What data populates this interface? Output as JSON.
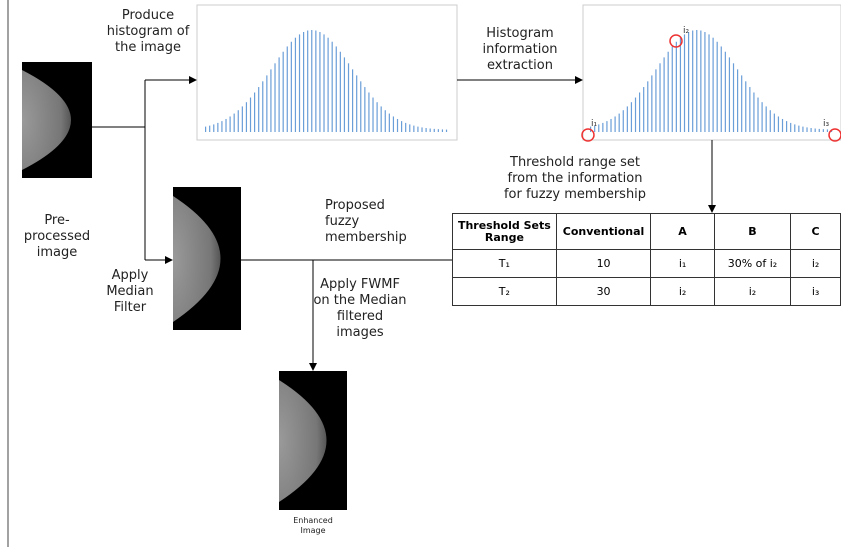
{
  "labels": {
    "produce_histogram": "Produce\nhistogram of\nthe image",
    "histogram_extraction": "Histogram\ninformation\nextraction",
    "threshold_range": "Threshold range set\nfrom the information\nfor fuzzy membership",
    "preprocessed": "Pre-\nprocessed\nimage",
    "median_filter": "Apply\nMedian\nFilter",
    "fuzzy_membership": "Proposed\nfuzzy\nmembership",
    "apply_fwmf": "Apply FWMF\non the Median\nfiltered\nimages",
    "enhanced": "Enhanced\nImage"
  },
  "histogram_markers": [
    "i₁",
    "i₂",
    "i₃"
  ],
  "table": {
    "header": [
      "Threshold Sets\nRange",
      "Conventional",
      "A",
      "B",
      "C"
    ],
    "rows": [
      [
        "T₁",
        "10",
        "i₁",
        "30% of i₂",
        "i₂"
      ],
      [
        "T₂",
        "30",
        "i₂",
        "i₂",
        "i₃"
      ]
    ]
  }
}
